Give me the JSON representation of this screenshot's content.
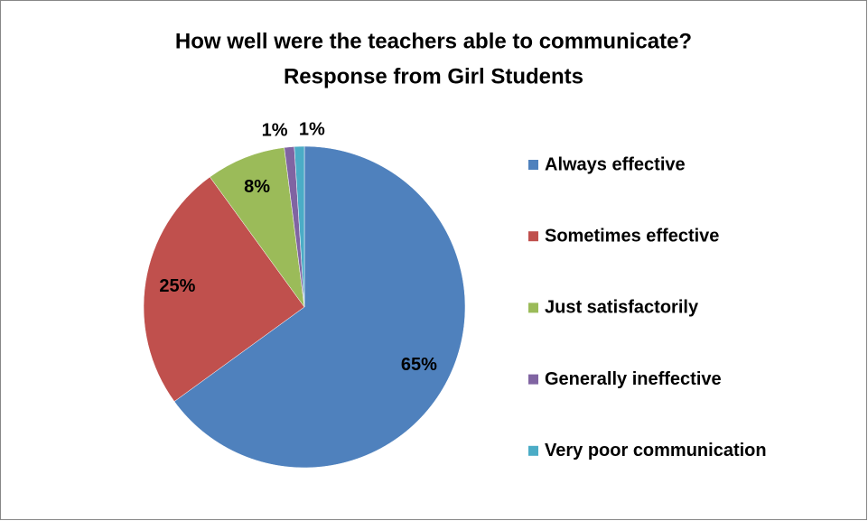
{
  "chart_data": {
    "type": "pie",
    "title": "How well were the teachers able to communicate?",
    "subtitle": "Response from Girl Students",
    "categories": [
      "Always effective",
      "Sometimes effective",
      "Just satisfactorily",
      "Generally ineffective",
      "Very poor communication"
    ],
    "values": [
      65,
      25,
      8,
      1,
      1
    ],
    "value_labels": [
      "65%",
      "25%",
      "8%",
      "1%",
      "1%"
    ],
    "colors": [
      "#4f81bd",
      "#c0504d",
      "#9bbb59",
      "#8064a2",
      "#4bacc6"
    ],
    "legend": "right"
  }
}
